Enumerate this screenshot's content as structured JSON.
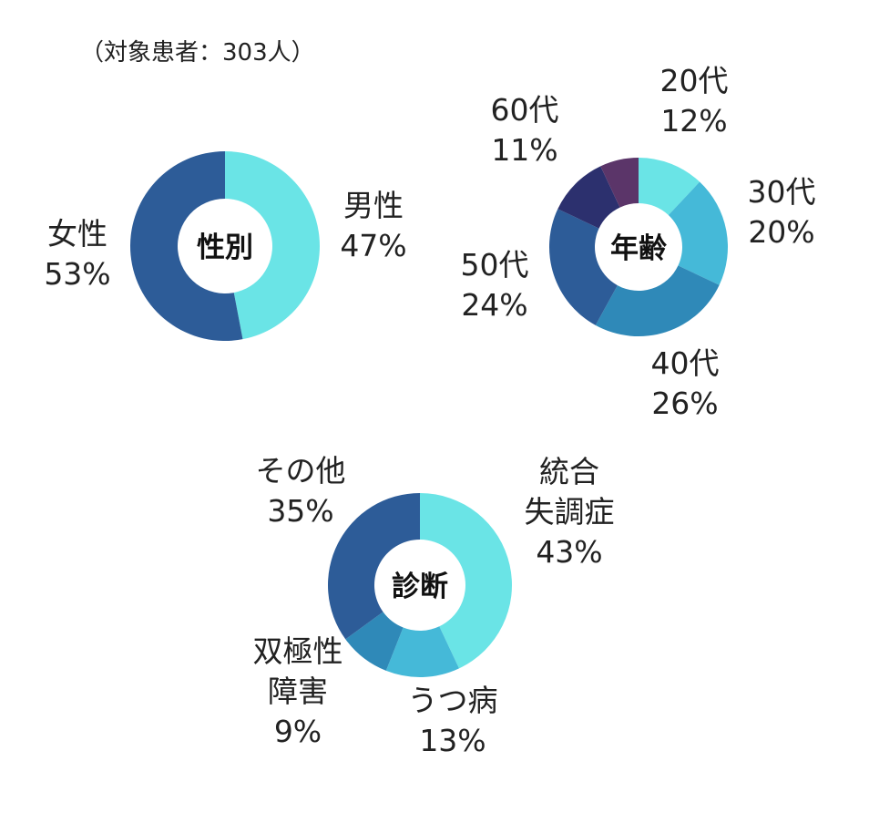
{
  "note": "（対象患者：303人）",
  "colors": {
    "cyan_light": "#6ae4e6",
    "cyan_mid": "#45b9d8",
    "blue_mid": "#2f89b8",
    "blue_dark": "#2d5c98",
    "navy": "#2c306e",
    "plum": "#5b3569"
  },
  "chart_data": [
    {
      "type": "pie",
      "variant": "donut",
      "center_label": "性別",
      "slices": [
        {
          "label": "男性",
          "pct_text": "47%",
          "value": 47,
          "color": "#6ae4e6"
        },
        {
          "label": "女性",
          "pct_text": "53%",
          "value": 53,
          "color": "#2d5c98"
        }
      ]
    },
    {
      "type": "pie",
      "variant": "donut",
      "center_label": "年齢",
      "slices": [
        {
          "label": "20代",
          "pct_text": "12%",
          "value": 12,
          "color": "#6ae4e6"
        },
        {
          "label": "30代",
          "pct_text": "20%",
          "value": 20,
          "color": "#45b9d8"
        },
        {
          "label": "40代",
          "pct_text": "26%",
          "value": 26,
          "color": "#2f89b8"
        },
        {
          "label": "50代",
          "pct_text": "24%",
          "value": 24,
          "color": "#2d5c98"
        },
        {
          "label": "60代",
          "pct_text": "11%",
          "value": 11,
          "color": "#2c306e"
        },
        {
          "label": "",
          "pct_text": "",
          "value": 7,
          "color": "#5b3569"
        }
      ]
    },
    {
      "type": "pie",
      "variant": "donut",
      "center_label": "診断",
      "slices": [
        {
          "label": "統合\n失調症",
          "pct_text": "43%",
          "value": 43,
          "color": "#6ae4e6"
        },
        {
          "label": "うつ病",
          "pct_text": "13%",
          "value": 13,
          "color": "#45b9d8"
        },
        {
          "label": "双極性\n障害",
          "pct_text": "9%",
          "value": 9,
          "color": "#2f89b8"
        },
        {
          "label": "その他",
          "pct_text": "35%",
          "value": 35,
          "color": "#2d5c98"
        }
      ]
    }
  ]
}
